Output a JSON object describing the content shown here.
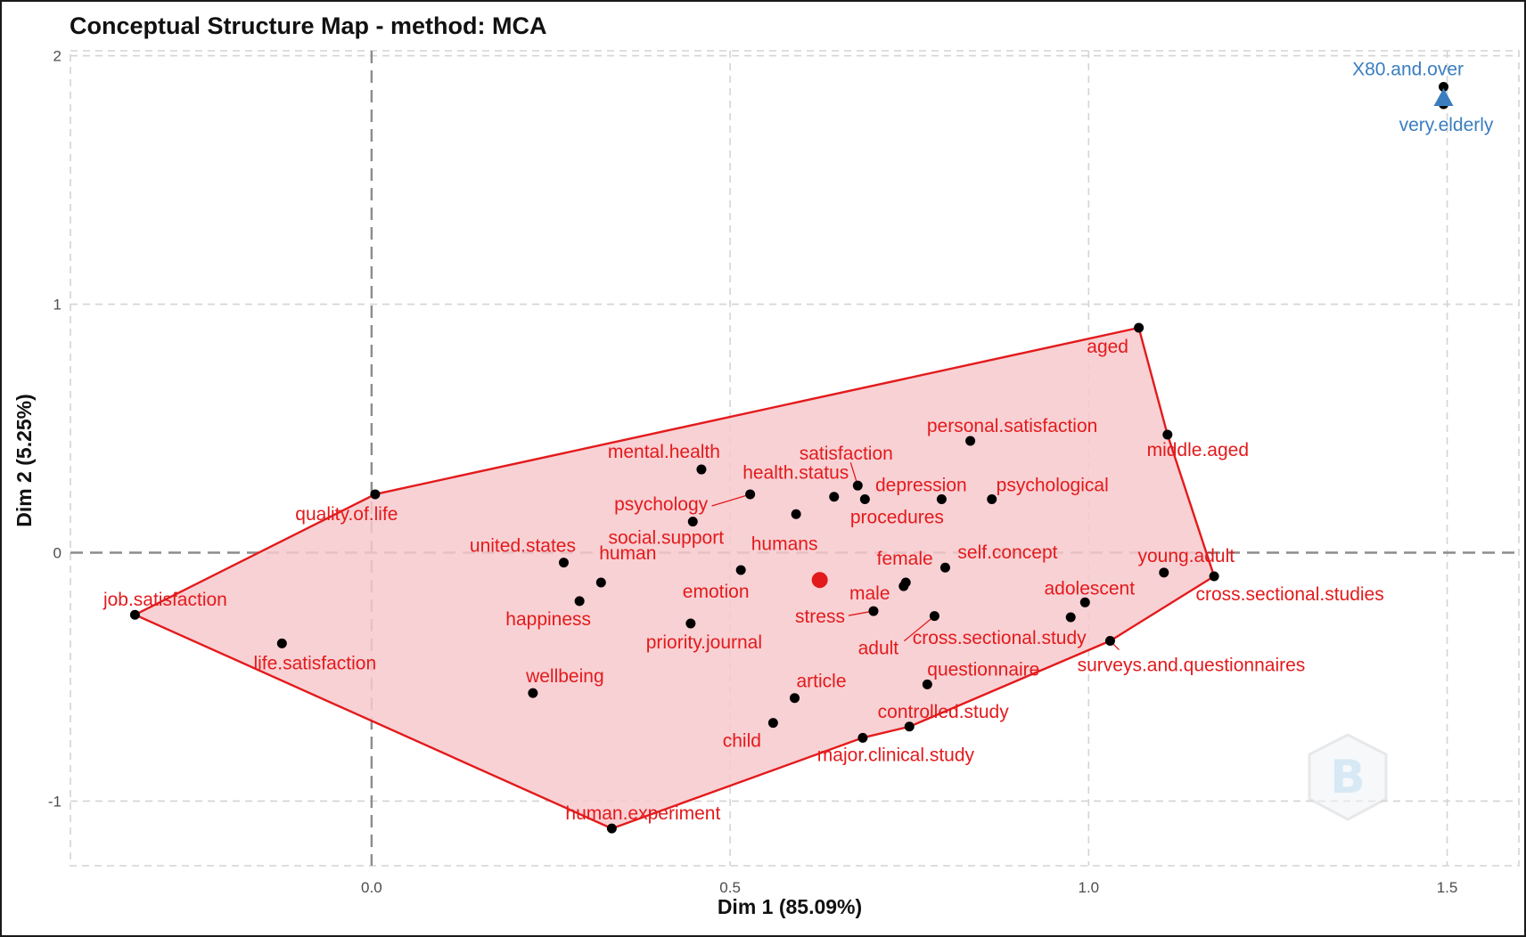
{
  "chart_data": {
    "type": "scatter",
    "title": "Conceptual Structure Map - method: MCA",
    "xlabel": "Dim 1 (85.09%)",
    "ylabel": "Dim 2 (5.25%)",
    "xlim": [
      -0.42,
      1.6
    ],
    "ylim": [
      -1.26,
      2.02
    ],
    "x_ticks": [
      0.0,
      0.5,
      1.0,
      1.5
    ],
    "x_tick_labels": [
      "0.0",
      "0.5",
      "1.0",
      "1.5"
    ],
    "y_ticks": [
      -1,
      0,
      1,
      2
    ],
    "y_tick_labels": [
      "-1",
      "0",
      "1",
      "2"
    ],
    "grid": true,
    "legend": "none",
    "colors": {
      "cluster1": "#e31a1c",
      "cluster1_fill": "#f7c9cd",
      "cluster2": "#3a7ebf",
      "points": "#000000"
    },
    "series": [
      {
        "cluster": 1,
        "color": "#e31a1c",
        "centroid": {
          "x": 0.625,
          "y": -0.11
        },
        "hull": [
          [
            -0.33,
            -0.25
          ],
          [
            0.005,
            0.235
          ],
          [
            1.07,
            0.905
          ],
          [
            1.11,
            0.475
          ],
          [
            1.175,
            -0.095
          ],
          [
            1.03,
            -0.355
          ],
          [
            0.75,
            -0.7
          ],
          [
            0.685,
            -0.745
          ],
          [
            0.335,
            -1.11
          ]
        ],
        "points": [
          {
            "label": "job.satisfaction",
            "x": -0.33,
            "y": -0.25
          },
          {
            "label": "life.satisfaction",
            "x": -0.125,
            "y": -0.365
          },
          {
            "label": "quality.of.life",
            "x": 0.005,
            "y": 0.235
          },
          {
            "label": "wellbeing",
            "x": 0.225,
            "y": -0.565
          },
          {
            "label": "united.states",
            "x": 0.268,
            "y": -0.04
          },
          {
            "label": "happiness",
            "x": 0.29,
            "y": -0.195
          },
          {
            "label": "human",
            "x": 0.32,
            "y": -0.12
          },
          {
            "label": "human.experiment",
            "x": 0.335,
            "y": -1.11
          },
          {
            "label": "priority.journal",
            "x": 0.445,
            "y": -0.285
          },
          {
            "label": "social.support",
            "x": 0.448,
            "y": 0.125
          },
          {
            "label": "mental.health",
            "x": 0.46,
            "y": 0.335
          },
          {
            "label": "emotion",
            "x": 0.515,
            "y": -0.07
          },
          {
            "label": "psychology",
            "x": 0.528,
            "y": 0.235
          },
          {
            "label": "child",
            "x": 0.56,
            "y": -0.685
          },
          {
            "label": "article",
            "x": 0.59,
            "y": -0.585
          },
          {
            "label": "humans",
            "x": 0.592,
            "y": 0.155
          },
          {
            "label": "health.status",
            "x": 0.645,
            "y": 0.225
          },
          {
            "label": "satisfaction",
            "x": 0.678,
            "y": 0.27
          },
          {
            "label": "major.clinical.study",
            "x": 0.685,
            "y": -0.745
          },
          {
            "label": "depression",
            "x": 0.688,
            "y": 0.215
          },
          {
            "label": "stress",
            "x": 0.7,
            "y": -0.235
          },
          {
            "label": "male",
            "x": 0.742,
            "y": -0.135
          },
          {
            "label": "female",
            "x": 0.745,
            "y": -0.12
          },
          {
            "label": "controlled.study",
            "x": 0.75,
            "y": -0.7
          },
          {
            "label": "questionnaire",
            "x": 0.775,
            "y": -0.53
          },
          {
            "label": "adult",
            "x": 0.785,
            "y": -0.255
          },
          {
            "label": "procedures",
            "x": 0.795,
            "y": 0.215
          },
          {
            "label": "self.concept",
            "x": 0.8,
            "y": -0.06
          },
          {
            "label": "personal.satisfaction",
            "x": 0.835,
            "y": 0.45
          },
          {
            "label": "psychological",
            "x": 0.865,
            "y": 0.215
          },
          {
            "label": "cross.sectional.study",
            "x": 0.975,
            "y": -0.26
          },
          {
            "label": "adolescent",
            "x": 0.995,
            "y": -0.2
          },
          {
            "label": "surveys.and.questionnaires",
            "x": 1.03,
            "y": -0.355
          },
          {
            "label": "aged",
            "x": 1.07,
            "y": 0.905
          },
          {
            "label": "young.adult",
            "x": 1.105,
            "y": -0.08
          },
          {
            "label": "middle.aged",
            "x": 1.11,
            "y": 0.475
          },
          {
            "label": "cross.sectional.studies",
            "x": 1.175,
            "y": -0.095
          }
        ]
      },
      {
        "cluster": 2,
        "color": "#3a7ebf",
        "centroid": {
          "x": 1.495,
          "y": 1.83
        },
        "points": [
          {
            "label": "X80.and.over",
            "x": 1.495,
            "y": 1.875
          },
          {
            "label": "very.elderly",
            "x": 1.495,
            "y": 1.805
          }
        ]
      }
    ]
  }
}
